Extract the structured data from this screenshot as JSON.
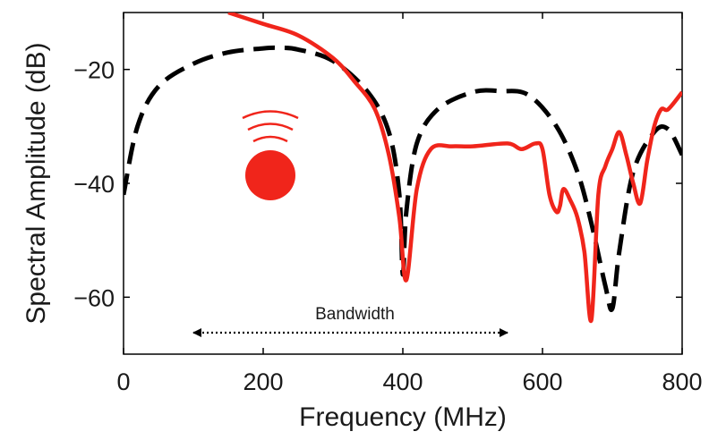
{
  "chart_data": {
    "type": "line",
    "xlabel": "Frequency (MHz)",
    "ylabel": "Spectral Amplitude (dB)",
    "xlim": [
      0,
      800
    ],
    "ylim": [
      -70,
      -10
    ],
    "xticks": [
      0,
      200,
      400,
      600,
      800
    ],
    "yticks": [
      -60,
      -40,
      -20
    ],
    "xtick_labels": [
      "0",
      "200",
      "400",
      "600",
      "800"
    ],
    "ytick_labels": [
      "−60",
      "−40",
      "−20"
    ],
    "grid": false,
    "legend": "none",
    "series": [
      {
        "style": "dashed",
        "color": "#000000",
        "x": [
          0,
          20,
          50,
          100,
          150,
          200,
          220,
          250,
          300,
          350,
          380,
          395,
          400,
          405,
          420,
          450,
          500,
          540,
          580,
          620,
          650,
          670,
          690,
          700,
          710,
          730,
          760,
          780,
          800
        ],
        "y": [
          -42,
          -30,
          -23,
          -19,
          -17,
          -16.3,
          -16.2,
          -16.5,
          -18.5,
          -24,
          -31,
          -42,
          -56,
          -45,
          -33,
          -27,
          -24,
          -23.8,
          -24.5,
          -30,
          -38,
          -47,
          -58,
          -62,
          -52,
          -38,
          -31,
          -30.5,
          -35
        ]
      },
      {
        "style": "solid",
        "color": "#f0251b",
        "x": [
          150,
          200,
          250,
          300,
          330,
          360,
          380,
          395,
          405,
          420,
          440,
          470,
          500,
          550,
          570,
          590,
          600,
          610,
          620,
          625,
          630,
          640,
          650,
          660,
          670,
          680,
          690,
          700,
          710,
          720,
          730,
          740,
          750,
          760,
          770,
          780,
          800
        ],
        "y": [
          -10,
          -12,
          -14,
          -18,
          -22,
          -27,
          -35,
          -46,
          -57,
          -41,
          -34,
          -33.5,
          -33.5,
          -33,
          -34,
          -33,
          -34,
          -42,
          -45,
          -44,
          -41,
          -43,
          -46,
          -52,
          -64,
          -42,
          -37,
          -34,
          -31,
          -35,
          -40,
          -43.5,
          -36,
          -30,
          -27,
          -27,
          -24
        ]
      }
    ],
    "annotations": {
      "bandwidth_label": "Bandwidth",
      "bandwidth_range": [
        100,
        550
      ]
    }
  }
}
